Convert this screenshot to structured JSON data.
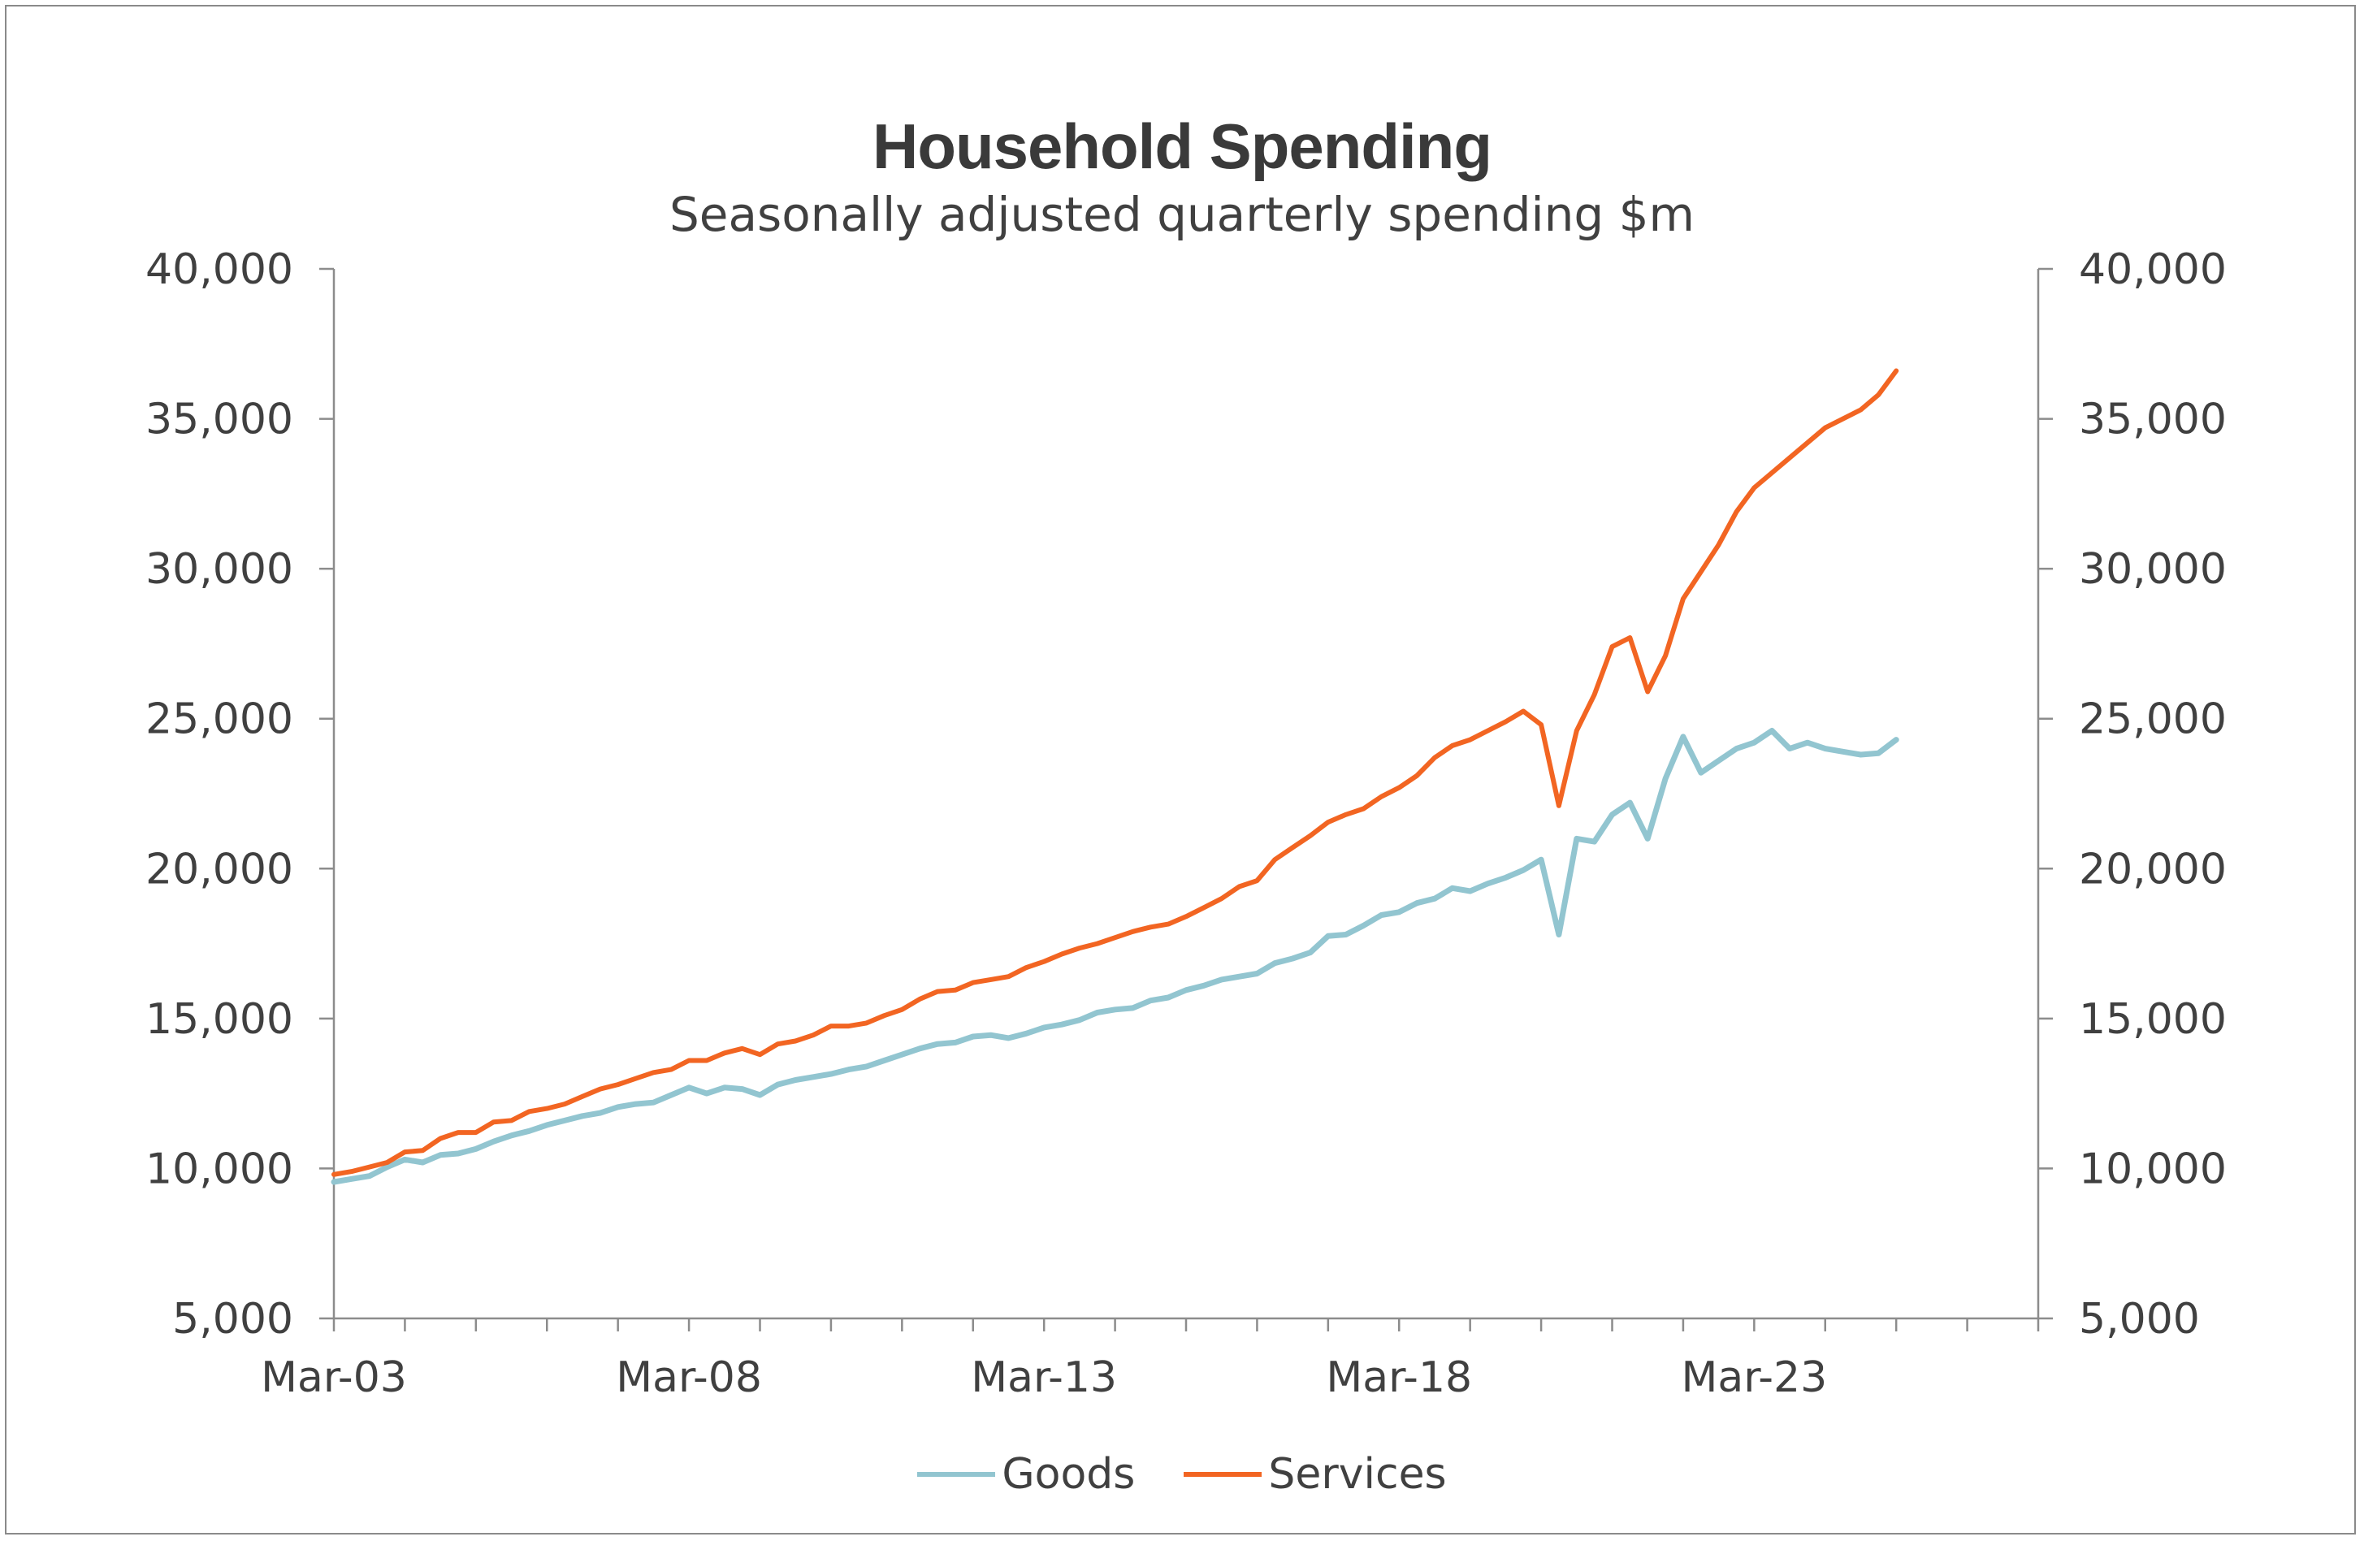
{
  "chart_data": {
    "type": "line",
    "title": "Household Spending",
    "subtitle": "Seasonally adjusted quarterly spending $m",
    "xlabel": "",
    "ylabel": "",
    "ylim": [
      5000,
      40000
    ],
    "y_ticks": [
      "5,000",
      "10,000",
      "15,000",
      "20,000",
      "25,000",
      "30,000",
      "35,000",
      "40,000"
    ],
    "secondary_y_ticks": [
      "5,000",
      "10,000",
      "15,000",
      "20,000",
      "25,000",
      "30,000",
      "35,000",
      "40,000"
    ],
    "x_start": "Mar-03",
    "x_end": "Mar-25",
    "x_axis_end": "Mar-27",
    "frequency": "quarterly",
    "x_tick_labels": [
      "Mar-03",
      "Mar-08",
      "Mar-13",
      "Mar-18",
      "Mar-23"
    ],
    "grid": false,
    "legend_position": "bottom",
    "series": [
      {
        "name": "Goods",
        "color": "#92C5D0",
        "values": [
          9550,
          9650,
          9750,
          10050,
          10300,
          10200,
          10450,
          10500,
          10650,
          10900,
          11100,
          11250,
          11450,
          11600,
          11750,
          11850,
          12050,
          12150,
          12200,
          12450,
          12700,
          12500,
          12700,
          12650,
          12450,
          12800,
          12950,
          13050,
          13150,
          13300,
          13400,
          13600,
          13800,
          14000,
          14150,
          14200,
          14400,
          14450,
          14350,
          14500,
          14700,
          14800,
          14950,
          15200,
          15300,
          15350,
          15600,
          15700,
          15950,
          16100,
          16300,
          16400,
          16500,
          16850,
          17000,
          17200,
          17750,
          17800,
          18100,
          18450,
          18550,
          18850,
          19000,
          19350,
          19250,
          19500,
          19700,
          19950,
          20300,
          17800,
          21000,
          20900,
          21800,
          22200,
          21000,
          23000,
          24400,
          23200,
          23600,
          24000,
          24200,
          24600,
          24000,
          24200,
          24000,
          23900,
          23800,
          23850,
          24300
        ]
      },
      {
        "name": "Services",
        "color": "#F26522",
        "values": [
          9800,
          9900,
          10050,
          10200,
          10550,
          10600,
          11000,
          11200,
          11200,
          11550,
          11600,
          11900,
          12000,
          12150,
          12400,
          12650,
          12800,
          13000,
          13200,
          13300,
          13600,
          13600,
          13850,
          14000,
          13800,
          14150,
          14250,
          14450,
          14750,
          14750,
          14850,
          15100,
          15300,
          15650,
          15900,
          15950,
          16200,
          16300,
          16400,
          16700,
          16900,
          17150,
          17350,
          17500,
          17700,
          17900,
          18050,
          18150,
          18400,
          18700,
          19000,
          19400,
          19600,
          20300,
          20700,
          21100,
          21550,
          21800,
          22000,
          22400,
          22700,
          23100,
          23700,
          24100,
          24300,
          24600,
          24900,
          25250,
          24800,
          22100,
          24600,
          25800,
          27400,
          27700,
          25900,
          27100,
          29000,
          29900,
          30800,
          31900,
          32700,
          33200,
          33700,
          34200,
          34700,
          35000,
          35300,
          35800,
          36600
        ]
      }
    ]
  }
}
